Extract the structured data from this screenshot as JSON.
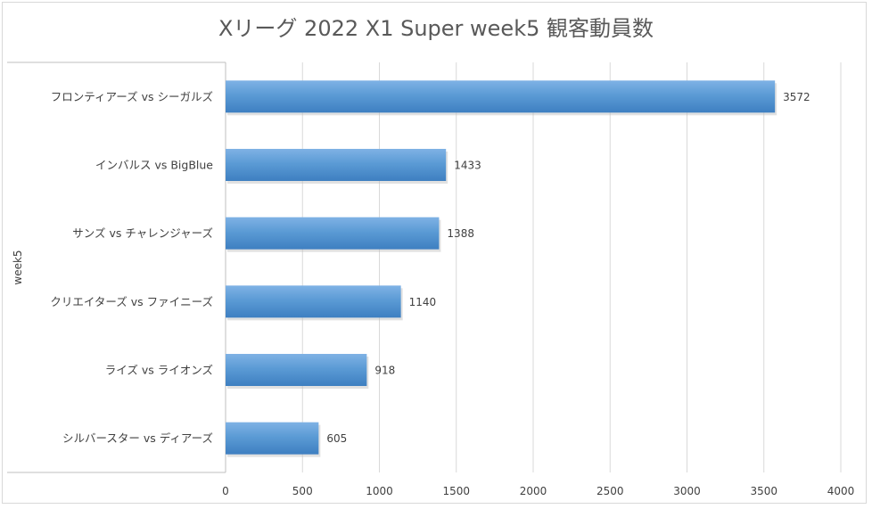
{
  "chart_data": {
    "type": "bar",
    "orientation": "horizontal",
    "title": "Xリーグ 2022 X1 Super week5 観客動員数",
    "ylabel": "week5",
    "xlabel": "",
    "categories": [
      "フロンティアーズ vs シーガルズ",
      "インバルス vs BigBlue",
      "サンズ vs チャレンジャーズ",
      "クリエイターズ vs ファイニーズ",
      "ライズ vs ライオンズ",
      "シルバースター vs ディアーズ"
    ],
    "values": [
      3572,
      1433,
      1388,
      1140,
      918,
      605
    ],
    "xlim": [
      0,
      4000
    ],
    "xticks": [
      0,
      500,
      1000,
      1500,
      2000,
      2500,
      3000,
      3500,
      4000
    ],
    "grid": "vertical",
    "legend": "none",
    "bar_color": "#5B9BD5",
    "data_labels": true
  }
}
